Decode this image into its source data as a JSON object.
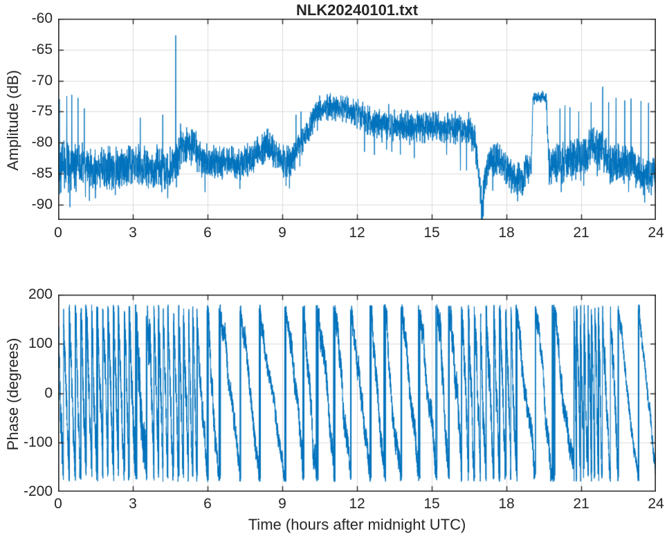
{
  "figure": {
    "background": "#ffffff",
    "line_color": "#0072BD",
    "grid_color": "#dcdcdc",
    "axis_color": "#262626",
    "text_color": "#262626"
  },
  "chart_data": [
    {
      "type": "line",
      "title": "NLK20240101.txt",
      "xlabel": "",
      "ylabel": "Amplitude (dB)",
      "xlim": [
        0,
        24
      ],
      "ylim": [
        -92.5,
        -60
      ],
      "xticks": [
        0,
        3,
        6,
        9,
        12,
        15,
        18,
        21,
        24
      ],
      "yticks": [
        -60,
        -65,
        -70,
        -75,
        -80,
        -85,
        -90
      ],
      "grid": true,
      "legend": null,
      "series_spec": {
        "kind": "noisy_envelope",
        "samples": 4200,
        "seed": 42,
        "noise_scale": 1.9,
        "envelope": [
          [
            0,
            -83.5
          ],
          [
            0.5,
            -83.8
          ],
          [
            1,
            -84
          ],
          [
            2,
            -84.3
          ],
          [
            3,
            -83.6
          ],
          [
            3.8,
            -84.3
          ],
          [
            4.4,
            -84.5
          ],
          [
            4.75,
            -83.5
          ],
          [
            4.9,
            -80.5
          ],
          [
            5.4,
            -80.6
          ],
          [
            5.8,
            -83
          ],
          [
            6.5,
            -83.3
          ],
          [
            7.3,
            -83.2
          ],
          [
            7.8,
            -82.5
          ],
          [
            8.35,
            -80.3
          ],
          [
            8.75,
            -81.5
          ],
          [
            9.1,
            -83.8
          ],
          [
            9.45,
            -82.3
          ],
          [
            9.9,
            -79
          ],
          [
            10.4,
            -74.8
          ],
          [
            11,
            -74.2
          ],
          [
            11.6,
            -74.6
          ],
          [
            12.2,
            -75.8
          ],
          [
            12.8,
            -76.8
          ],
          [
            13.5,
            -77.2
          ],
          [
            14.5,
            -77.4
          ],
          [
            15.5,
            -77.6
          ],
          [
            16.5,
            -77.9
          ],
          [
            16.75,
            -80
          ],
          [
            16.95,
            -88
          ],
          [
            17.02,
            -90.8
          ],
          [
            17.15,
            -85.5
          ],
          [
            17.35,
            -83.5
          ],
          [
            17.6,
            -82.8
          ],
          [
            18,
            -84
          ],
          [
            18.3,
            -86
          ],
          [
            18.6,
            -85.6
          ],
          [
            18.85,
            -84.2
          ],
          [
            19.0,
            -83.8
          ],
          [
            19.06,
            -72.9
          ],
          [
            19.35,
            -72.6
          ],
          [
            19.6,
            -72.8
          ],
          [
            19.66,
            -80
          ],
          [
            19.72,
            -84
          ],
          [
            20,
            -83.6
          ],
          [
            20.5,
            -83.2
          ],
          [
            21,
            -82.6
          ],
          [
            21.35,
            -80.8
          ],
          [
            21.7,
            -81.2
          ],
          [
            22.1,
            -83
          ],
          [
            22.6,
            -83.4
          ],
          [
            23.1,
            -83.6
          ],
          [
            23.35,
            -85
          ],
          [
            24,
            -85.3
          ]
        ],
        "noise": [
          [
            0,
            2.8
          ],
          [
            1,
            2.2
          ],
          [
            3,
            2.0
          ],
          [
            4.6,
            2.2
          ],
          [
            5.2,
            1.9
          ],
          [
            6,
            1.7
          ],
          [
            8,
            1.5
          ],
          [
            9,
            1.7
          ],
          [
            10.5,
            1.3
          ],
          [
            11.5,
            1.3
          ],
          [
            12.5,
            1.5
          ],
          [
            14,
            1.5
          ],
          [
            16,
            1.6
          ],
          [
            16.9,
            1.8
          ],
          [
            17.3,
            1.7
          ],
          [
            18,
            1.7
          ],
          [
            18.6,
            1.8
          ],
          [
            19.0,
            1.4
          ],
          [
            19.1,
            0.55
          ],
          [
            19.55,
            0.55
          ],
          [
            19.75,
            2.0
          ],
          [
            20.5,
            2.1
          ],
          [
            21.3,
            1.9
          ],
          [
            22,
            2.2
          ],
          [
            23,
            1.9
          ],
          [
            24,
            1.8
          ]
        ],
        "spikes_up": [
          [
            0.05,
            -73
          ],
          [
            0.35,
            -72.5
          ],
          [
            0.55,
            -72.3
          ],
          [
            0.8,
            -72.8
          ],
          [
            1.05,
            -74.5
          ],
          [
            3.3,
            -76
          ],
          [
            4.2,
            -75.5
          ],
          [
            4.72,
            -62.7
          ],
          [
            9.55,
            -75.5
          ],
          [
            9.75,
            -75
          ],
          [
            10.5,
            -72.4
          ],
          [
            10.8,
            -72.2
          ],
          [
            11.05,
            -72.6
          ],
          [
            11.35,
            -72.4
          ],
          [
            12.9,
            -74.6
          ],
          [
            14.05,
            -75
          ],
          [
            20.15,
            -74.5
          ],
          [
            20.35,
            -74
          ],
          [
            20.55,
            -74.3
          ],
          [
            20.9,
            -75
          ],
          [
            21.4,
            -73.5
          ],
          [
            21.86,
            -71
          ],
          [
            22.1,
            -73.5
          ],
          [
            22.4,
            -72.8
          ],
          [
            22.75,
            -73.2
          ],
          [
            23.0,
            -72.9
          ],
          [
            23.4,
            -73.3
          ],
          [
            23.7,
            -73.6
          ]
        ],
        "spikes_down": [
          [
            1.5,
            -89
          ],
          [
            2.3,
            -88.5
          ],
          [
            4.4,
            -89
          ],
          [
            5.9,
            -88
          ],
          [
            7.3,
            -87.5
          ],
          [
            9.15,
            -87
          ],
          [
            12.3,
            -81.5
          ],
          [
            12.7,
            -82
          ],
          [
            13.4,
            -81.5
          ],
          [
            14.3,
            -82.5
          ],
          [
            15.6,
            -82
          ],
          [
            16.15,
            -84.5
          ],
          [
            16.4,
            -84.5
          ],
          [
            17.0,
            -92.4
          ],
          [
            18.45,
            -89.5
          ],
          [
            18.65,
            -88.5
          ],
          [
            20.2,
            -88
          ],
          [
            21.1,
            -87
          ],
          [
            22.9,
            -88
          ],
          [
            23.5,
            -88.5
          ]
        ]
      }
    },
    {
      "type": "line",
      "title": "",
      "xlabel": "Time (hours after midnight UTC)",
      "ylabel": "Phase (degrees)",
      "xlim": [
        0,
        24
      ],
      "ylim": [
        -200,
        200
      ],
      "xticks": [
        0,
        3,
        6,
        9,
        12,
        15,
        18,
        21,
        24
      ],
      "yticks": [
        200,
        100,
        0,
        -100,
        -200
      ],
      "grid": true,
      "legend": null,
      "series_spec": {
        "kind": "wrapped_phase",
        "samples": 7000,
        "seed": 7,
        "start_phase": 170,
        "wrap_range": [
          -180,
          180
        ],
        "segments": [
          [
            0,
            3,
            -1600,
            35
          ],
          [
            3,
            3.7,
            -620,
            45
          ],
          [
            3.7,
            5.6,
            -1750,
            35
          ],
          [
            5.6,
            6.3,
            -900,
            25
          ],
          [
            6.3,
            8.3,
            -420,
            18
          ],
          [
            8.3,
            9.3,
            -360,
            14
          ],
          [
            9.3,
            12,
            -560,
            22
          ],
          [
            12,
            15.3,
            -520,
            22
          ],
          [
            15.3,
            16.3,
            -850,
            28
          ],
          [
            16.3,
            18.4,
            -1500,
            32
          ],
          [
            18.4,
            20.7,
            -470,
            20
          ],
          [
            20.7,
            21.8,
            -2600,
            42
          ],
          [
            21.8,
            22.5,
            -1100,
            28
          ],
          [
            22.5,
            24,
            -470,
            12
          ]
        ]
      }
    }
  ]
}
